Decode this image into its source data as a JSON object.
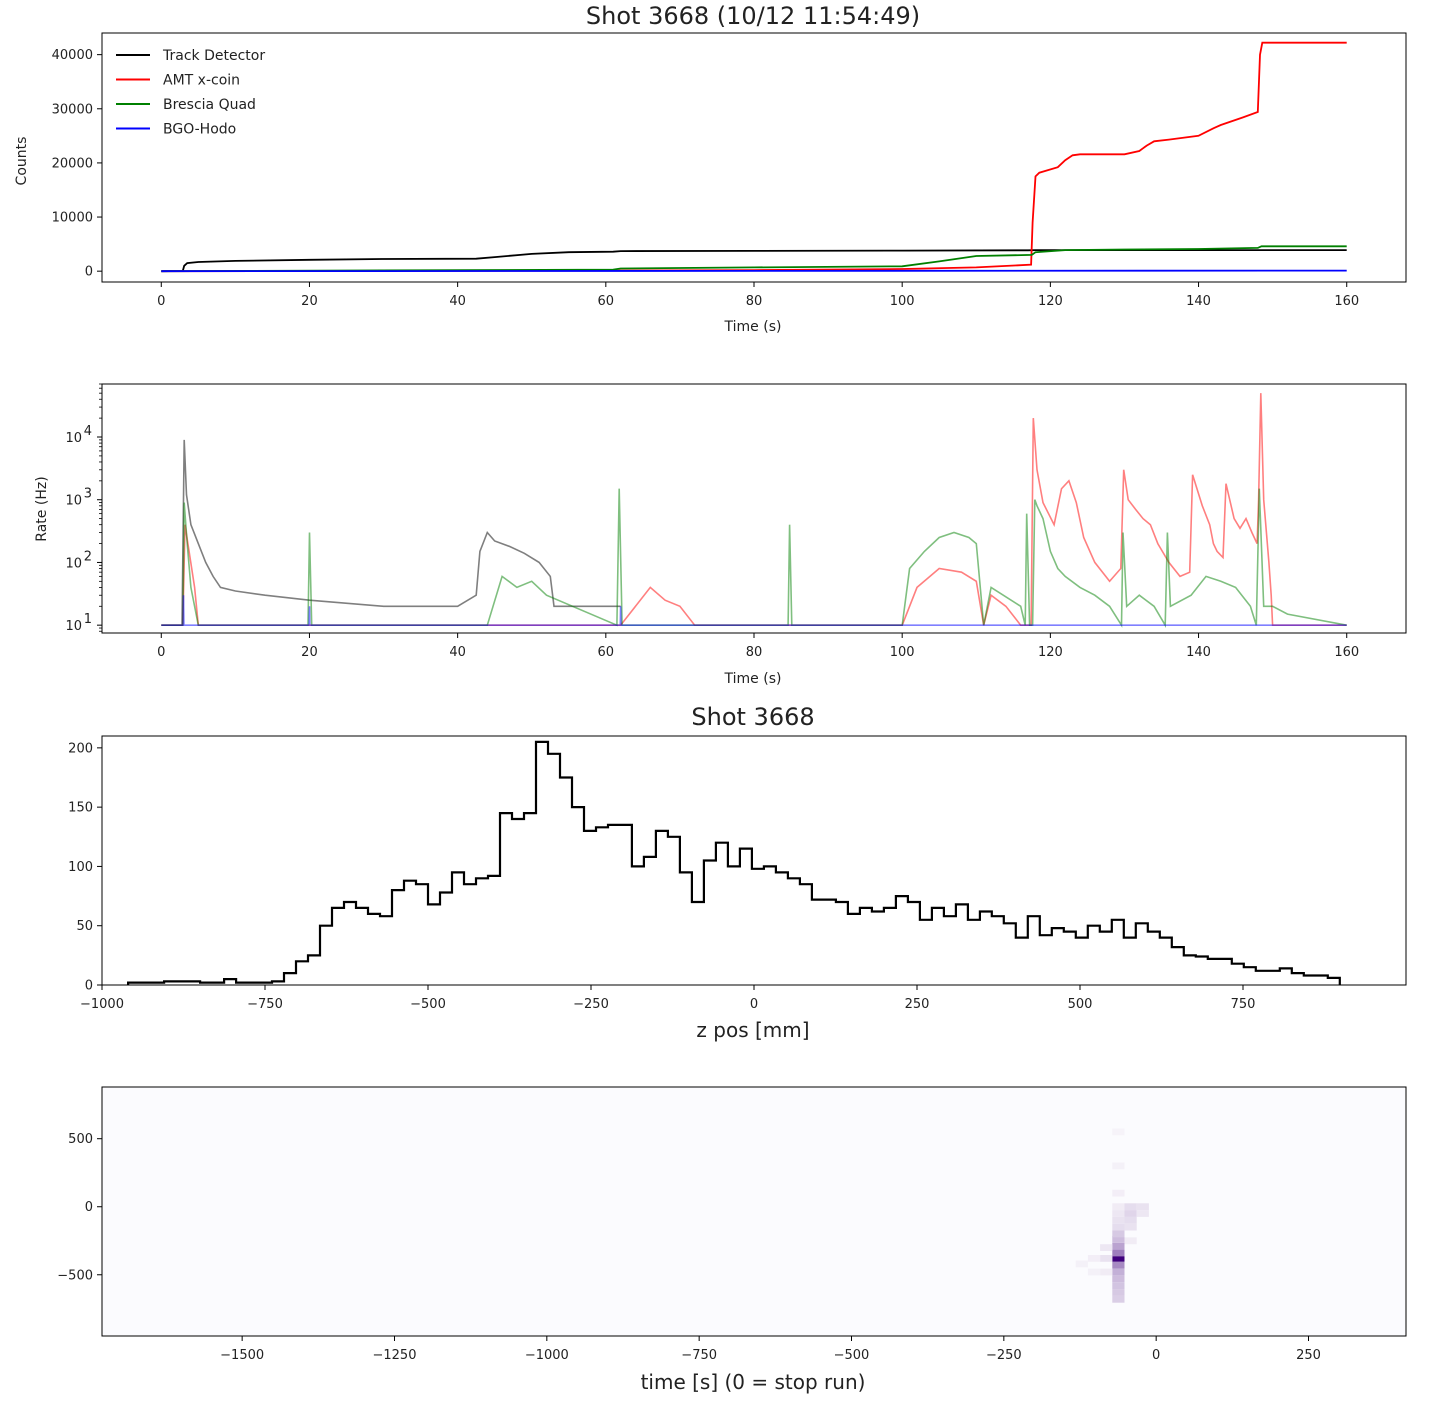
{
  "chart_data": [
    {
      "type": "line",
      "title": "Shot 3668 (10/12 11:54:49)",
      "xlabel": "Time (s)",
      "ylabel": "Counts",
      "xlim": [
        -8,
        168
      ],
      "ylim": [
        -2000,
        44000
      ],
      "xticks": [
        "0",
        "20",
        "40",
        "60",
        "80",
        "100",
        "120",
        "140",
        "160"
      ],
      "yticks": [
        "0",
        "10000",
        "20000",
        "30000",
        "40000"
      ],
      "legend": "top-left",
      "series": [
        {
          "name": "Track Detector",
          "color": "#000000",
          "x": [
            0,
            2.9,
            3.1,
            3.5,
            5,
            10,
            20,
            30,
            42.5,
            45,
            50,
            55,
            61,
            62,
            80,
            100,
            117,
            118,
            140,
            160
          ],
          "y": [
            0,
            50,
            1000,
            1500,
            1700,
            1900,
            2100,
            2250,
            2300,
            2600,
            3200,
            3500,
            3600,
            3700,
            3750,
            3800,
            3850,
            3900,
            3900,
            3900
          ]
        },
        {
          "name": "AMT x-coin",
          "color": "#ff0000",
          "x": [
            0,
            60,
            80,
            100,
            110,
            117.4,
            117.6,
            118,
            118.5,
            121,
            122,
            123,
            124,
            130,
            132,
            133,
            134,
            136,
            140,
            142,
            143,
            146,
            148,
            148.3,
            148.6,
            160
          ],
          "y": [
            0,
            100,
            200,
            400,
            700,
            1200,
            9000,
            17500,
            18200,
            19200,
            20500,
            21400,
            21600,
            21600,
            22200,
            23200,
            24000,
            24300,
            25000,
            26400,
            27000,
            28400,
            29400,
            40000,
            42200,
            42200
          ]
        },
        {
          "name": "Brescia Quad",
          "color": "#008000",
          "x": [
            0,
            61,
            62,
            80,
            100,
            105,
            110,
            117.5,
            118,
            122,
            130,
            140,
            148,
            148.5,
            160
          ],
          "y": [
            0,
            300,
            500,
            700,
            900,
            1800,
            2800,
            3000,
            3500,
            3900,
            4000,
            4100,
            4300,
            4600,
            4600
          ]
        },
        {
          "name": "BGO-Hodo",
          "color": "#0000ff",
          "x": [
            0,
            160
          ],
          "y": [
            0,
            100
          ]
        }
      ]
    },
    {
      "type": "line",
      "xlabel": "Time (s)",
      "ylabel": "Rate (Hz)",
      "yscale": "log",
      "xlim": [
        -8,
        168
      ],
      "ylim": [
        7.5,
        70000
      ],
      "xticks": [
        "0",
        "20",
        "40",
        "60",
        "80",
        "100",
        "120",
        "140",
        "160"
      ],
      "yticks": [
        {
          "base": "10",
          "exp": "1"
        },
        {
          "base": "10",
          "exp": "2"
        },
        {
          "base": "10",
          "exp": "3"
        },
        {
          "base": "10",
          "exp": "4"
        }
      ],
      "series": [
        {
          "color": "#000000",
          "opacity": 0.5,
          "x": [
            0,
            2.8,
            3.1,
            3.4,
            4,
            5,
            6,
            7,
            8,
            10,
            14,
            20,
            30,
            40,
            42.5,
            43,
            44,
            45,
            47,
            49,
            51,
            52.5,
            53,
            56,
            61,
            62
          ],
          "y": [
            10,
            10,
            9000,
            1200,
            400,
            200,
            100,
            60,
            40,
            35,
            30,
            25,
            20,
            20,
            30,
            150,
            300,
            220,
            180,
            140,
            100,
            60,
            20,
            20,
            20,
            20
          ]
        },
        {
          "color": "#ff0000",
          "opacity": 0.5,
          "x": [
            0,
            2.9,
            3.2,
            3.6,
            4.5,
            5,
            62,
            64,
            66,
            68,
            70,
            72,
            100,
            102,
            105,
            108,
            110,
            111,
            112,
            114,
            116,
            117.4,
            117.7,
            118.2,
            119,
            120.5,
            121.5,
            122.5,
            123.5,
            124.5,
            126,
            128,
            129.5,
            129.9,
            130.5,
            131.5,
            132.5,
            133.5,
            134.5,
            136,
            137.5,
            138.8,
            139.2,
            140.5,
            141.5,
            142,
            142.5,
            143.3,
            143.7,
            144.8,
            145.6,
            146.4,
            147.2,
            147.9,
            148.1,
            148.4,
            148.8,
            149.5,
            149.8,
            150,
            160
          ],
          "y": [
            10,
            10,
            400,
            200,
            40,
            10,
            10,
            20,
            40,
            25,
            20,
            10,
            10,
            40,
            80,
            70,
            50,
            10,
            30,
            20,
            10,
            10,
            20000,
            3000,
            900,
            400,
            1500,
            2000,
            900,
            250,
            100,
            50,
            80,
            3000,
            1000,
            700,
            500,
            400,
            200,
            100,
            60,
            70,
            2500,
            800,
            400,
            200,
            150,
            120,
            1800,
            500,
            350,
            500,
            300,
            200,
            1000,
            50000,
            1000,
            100,
            30,
            10,
            10
          ]
        },
        {
          "color": "#008000",
          "opacity": 0.5,
          "x": [
            0,
            2.9,
            3.1,
            3.5,
            4,
            5,
            19.8,
            20,
            20.3,
            44,
            46,
            48,
            50,
            52,
            61.5,
            61.8,
            62.2,
            84.6,
            84.8,
            85.1,
            100,
            101,
            103,
            105,
            107,
            109,
            110,
            111,
            112,
            116,
            116.6,
            116.8,
            117.2,
            117.6,
            117.9,
            118.2,
            119,
            120,
            121,
            122,
            124,
            126,
            128,
            129.6,
            129.8,
            130.3,
            132,
            134,
            135.5,
            135.8,
            136.2,
            139,
            141,
            143,
            145,
            147,
            147.8,
            148.2,
            148.8,
            150,
            152,
            160
          ],
          "y": [
            10,
            10,
            900,
            200,
            40,
            10,
            10,
            300,
            10,
            10,
            60,
            40,
            50,
            30,
            10,
            1500,
            10,
            10,
            400,
            10,
            10,
            80,
            150,
            250,
            300,
            250,
            200,
            10,
            40,
            20,
            10,
            600,
            10,
            10,
            1000,
            800,
            500,
            150,
            80,
            60,
            40,
            30,
            20,
            10,
            300,
            20,
            30,
            20,
            10,
            300,
            20,
            30,
            60,
            50,
            40,
            20,
            10,
            1500,
            20,
            20,
            15,
            10
          ]
        },
        {
          "color": "#0000ff",
          "opacity": 0.5,
          "x": [
            0,
            2.95,
            3.0,
            3.05,
            19.95,
            20.0,
            20.05,
            61.95,
            62.0,
            62.05,
            160
          ],
          "y": [
            10,
            10,
            30,
            10,
            10,
            20,
            10,
            10,
            20,
            10,
            10
          ]
        }
      ]
    },
    {
      "type": "bar",
      "subtype": "step-histogram",
      "title": "Shot 3668",
      "xlabel": "z pos [mm]",
      "xlim": [
        -1000,
        1000
      ],
      "ylim": [
        0,
        210
      ],
      "xticks": [
        "−1000",
        "−750",
        "−500",
        "−250",
        "0",
        "250",
        "500",
        "750"
      ],
      "yticks": [
        "0",
        "50",
        "100",
        "150",
        "200"
      ],
      "bin_edges_start": -960,
      "bin_width": 18.4,
      "values": [
        2,
        2,
        2,
        3,
        3,
        3,
        2,
        2,
        5,
        2,
        2,
        2,
        3,
        10,
        20,
        25,
        50,
        65,
        70,
        65,
        60,
        58,
        80,
        88,
        85,
        68,
        78,
        95,
        85,
        90,
        92,
        145,
        140,
        145,
        205,
        195,
        175,
        150,
        130,
        133,
        135,
        135,
        100,
        108,
        130,
        125,
        95,
        70,
        105,
        120,
        100,
        115,
        98,
        100,
        95,
        90,
        85,
        72,
        72,
        70,
        60,
        65,
        62,
        65,
        75,
        70,
        55,
        65,
        58,
        68,
        55,
        62,
        58,
        52,
        40,
        58,
        42,
        48,
        45,
        40,
        50,
        45,
        55,
        40,
        52,
        45,
        40,
        32,
        25,
        24,
        22,
        22,
        18,
        15,
        12,
        12,
        14,
        10,
        8,
        8,
        6
      ]
    },
    {
      "type": "heatmap",
      "xlabel": "time [s] (0 =  stop run)",
      "xlim": [
        -1730,
        410
      ],
      "ylim": [
        -950,
        880
      ],
      "xticks": [
        "−1500",
        "−1250",
        "−1000",
        "−750",
        "−500",
        "−250",
        "0",
        "250"
      ],
      "yticks": [
        "500",
        "0",
        "−500"
      ],
      "colormap": "Purples",
      "cells": [
        {
          "x": -62,
          "y": -380,
          "value": 1.0
        },
        {
          "x": -62,
          "y": -340,
          "value": 0.5
        },
        {
          "x": -62,
          "y": -430,
          "value": 0.45
        },
        {
          "x": -62,
          "y": -290,
          "value": 0.35
        },
        {
          "x": -62,
          "y": -480,
          "value": 0.3
        },
        {
          "x": -62,
          "y": -530,
          "value": 0.25
        },
        {
          "x": -62,
          "y": -240,
          "value": 0.25
        },
        {
          "x": -62,
          "y": -200,
          "value": 0.2
        },
        {
          "x": -62,
          "y": -580,
          "value": 0.22
        },
        {
          "x": -62,
          "y": -630,
          "value": 0.2
        },
        {
          "x": -62,
          "y": -680,
          "value": 0.18
        },
        {
          "x": -62,
          "y": -150,
          "value": 0.12
        },
        {
          "x": -62,
          "y": -100,
          "value": 0.1
        },
        {
          "x": -62,
          "y": -50,
          "value": 0.08
        },
        {
          "x": -62,
          "y": 0,
          "value": 0.06
        },
        {
          "x": -62,
          "y": 100,
          "value": 0.05
        },
        {
          "x": -62,
          "y": 300,
          "value": 0.04
        },
        {
          "x": -62,
          "y": 550,
          "value": 0.03
        },
        {
          "x": -42,
          "y": -100,
          "value": 0.12
        },
        {
          "x": -42,
          "y": -50,
          "value": 0.15
        },
        {
          "x": -42,
          "y": 0,
          "value": 0.12
        },
        {
          "x": -42,
          "y": -150,
          "value": 0.1
        },
        {
          "x": -22,
          "y": -50,
          "value": 0.08
        },
        {
          "x": -22,
          "y": 0,
          "value": 0.1
        },
        {
          "x": -82,
          "y": -300,
          "value": 0.08
        },
        {
          "x": -82,
          "y": -380,
          "value": 0.1
        },
        {
          "x": -82,
          "y": -480,
          "value": 0.06
        },
        {
          "x": -102,
          "y": -380,
          "value": 0.05
        },
        {
          "x": -102,
          "y": -480,
          "value": 0.04
        },
        {
          "x": -122,
          "y": -420,
          "value": 0.04
        },
        {
          "x": -42,
          "y": -250,
          "value": 0.06
        }
      ]
    }
  ]
}
